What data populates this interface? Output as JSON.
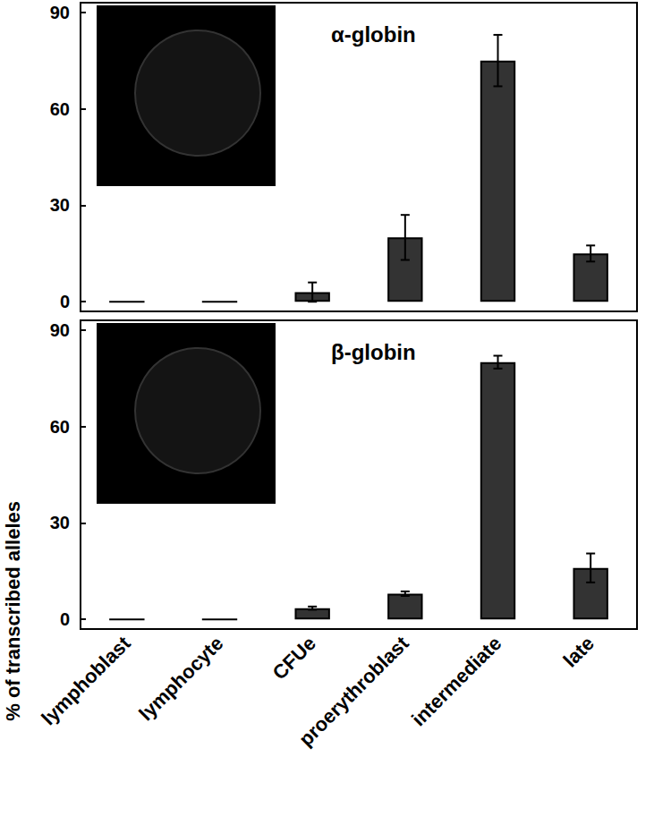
{
  "y_label": "% of transcribed alleles",
  "chart_data": [
    {
      "type": "bar",
      "title": "α-globin",
      "categories": [
        "lymphoblast",
        "lymphocyte",
        "CFUe",
        "proerythroblast",
        "intermediate",
        "late"
      ],
      "values": [
        0,
        0,
        3,
        20,
        75,
        15
      ],
      "errors": [
        0,
        0,
        3,
        7,
        8,
        2.5
      ],
      "color": "#333333",
      "ylim": [
        -3,
        93
      ],
      "yticks": [
        0,
        30,
        60,
        90
      ],
      "grid": false,
      "tick_labels": "y"
    },
    {
      "type": "bar",
      "title": "β-globin",
      "categories": [
        "lymphoblast",
        "lymphocyte",
        "CFUe",
        "proerythroblast",
        "intermediate",
        "late"
      ],
      "values": [
        0,
        0,
        3.5,
        8,
        80,
        16
      ],
      "errors": [
        0,
        0,
        0.5,
        0.7,
        2,
        4.5
      ],
      "color": "#333333",
      "ylim": [
        -3,
        93
      ],
      "yticks": [
        0,
        30,
        60,
        90
      ],
      "grid": false
    }
  ]
}
